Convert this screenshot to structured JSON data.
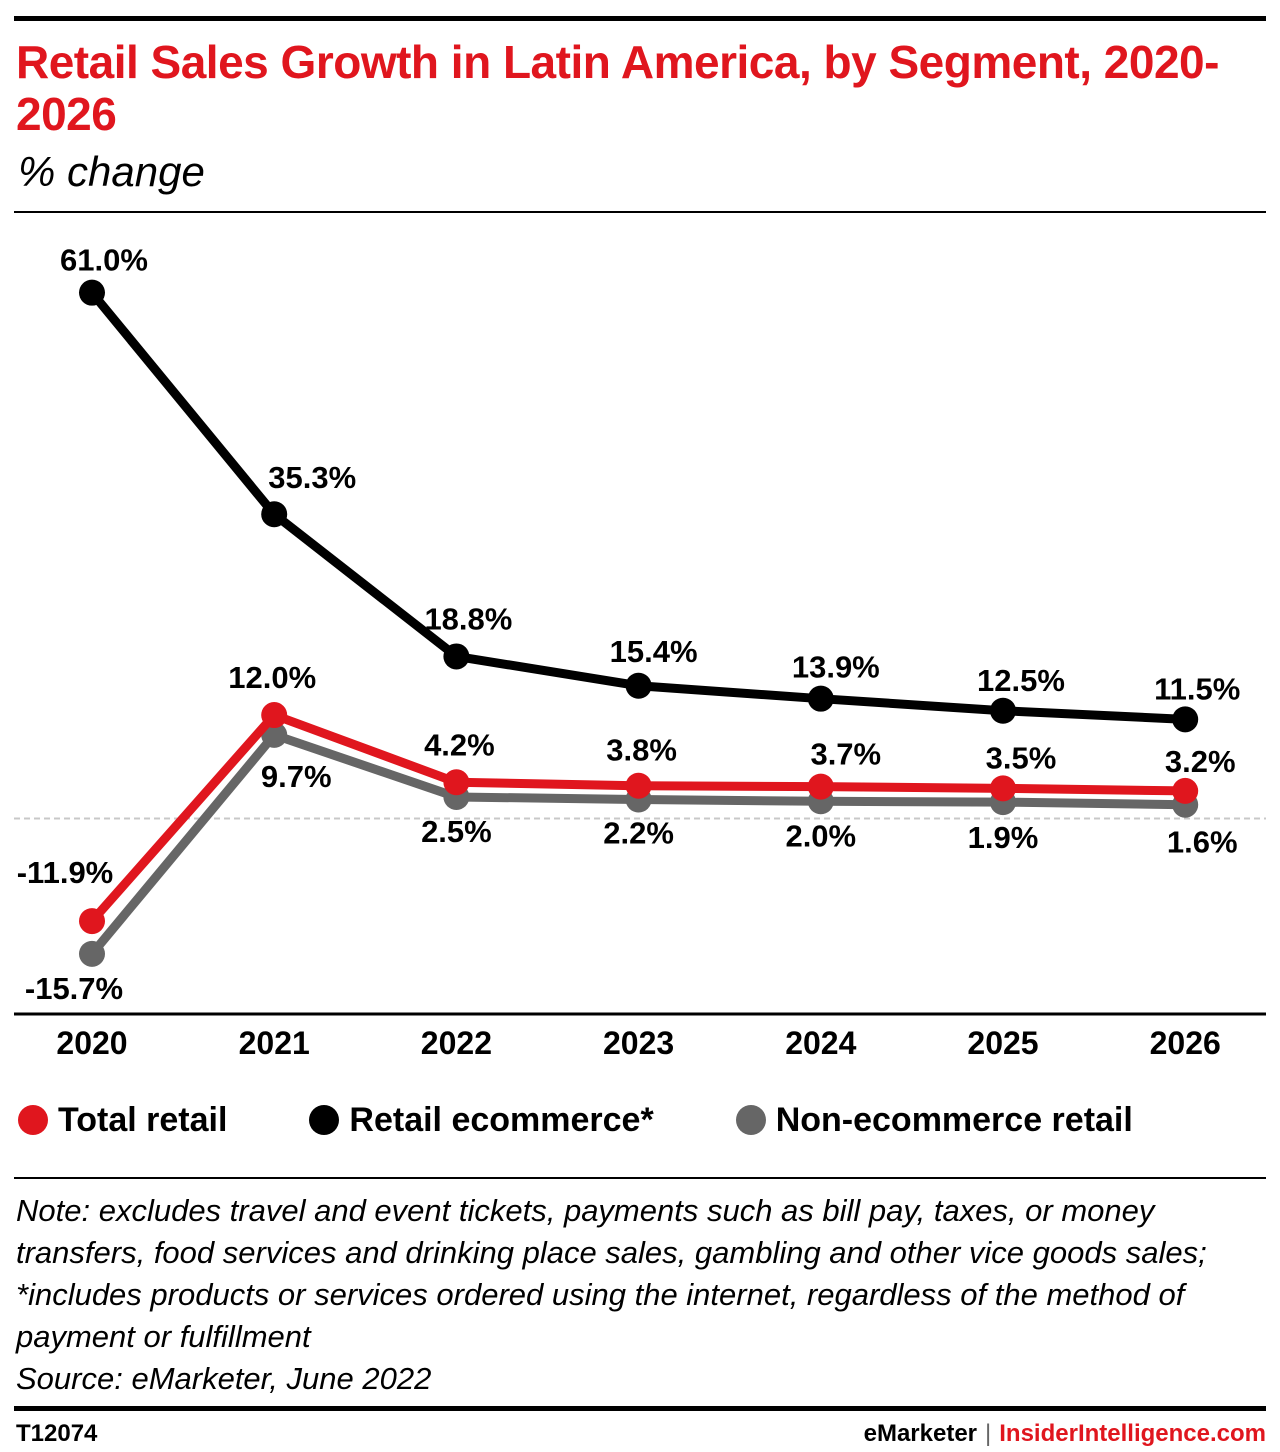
{
  "header": {
    "title": "Retail Sales Growth in Latin America, by Segment, 2020-2026",
    "subtitle": "% change"
  },
  "colors": {
    "brand_red": "#e0161e",
    "total_retail": "#e0161e",
    "retail_ecommerce": "#000000",
    "non_ecommerce_retail": "#666666"
  },
  "chart_data": {
    "type": "line",
    "title": "Retail Sales Growth in Latin America, by Segment, 2020-2026",
    "subtitle": "% change",
    "xlabel": "",
    "ylabel": "",
    "x": [
      "2020",
      "2021",
      "2022",
      "2023",
      "2024",
      "2025",
      "2026"
    ],
    "ylim": [
      -20,
      65
    ],
    "grid": false,
    "zero_line": "dashed",
    "legend_position": "bottom",
    "series": [
      {
        "name": "Total retail",
        "color": "#e0161e",
        "values": [
          -11.9,
          12.0,
          4.2,
          3.8,
          3.7,
          3.5,
          3.2
        ],
        "labels": [
          "-11.9%",
          "12.0%",
          "4.2%",
          "3.8%",
          "3.7%",
          "3.5%",
          "3.2%"
        ]
      },
      {
        "name": "Retail ecommerce*",
        "color": "#000000",
        "values": [
          61.0,
          35.3,
          18.8,
          15.4,
          13.9,
          12.5,
          11.5
        ],
        "labels": [
          "61.0%",
          "35.3%",
          "18.8%",
          "15.4%",
          "13.9%",
          "12.5%",
          "11.5%"
        ]
      },
      {
        "name": "Non-ecommerce retail",
        "color": "#666666",
        "values": [
          -15.7,
          9.7,
          2.5,
          2.2,
          2.0,
          1.9,
          1.6
        ],
        "labels": [
          "-15.7%",
          "9.7%",
          "2.5%",
          "2.2%",
          "2.0%",
          "1.9%",
          "1.6%"
        ]
      }
    ]
  },
  "legend": {
    "items": [
      {
        "label": "Total retail",
        "color": "#e0161e"
      },
      {
        "label": "Retail ecommerce*",
        "color": "#000000"
      },
      {
        "label": "Non-ecommerce retail",
        "color": "#666666"
      }
    ]
  },
  "note": {
    "text": "Note: excludes travel and event tickets, payments such as bill pay, taxes, or money transfers, food services and drinking place sales, gambling and other vice goods sales; *includes products or services ordered using the internet, regardless of the method of payment or fulfillment",
    "source": "Source: eMarketer, June 2022"
  },
  "footer": {
    "chart_id": "T12074",
    "brand": "eMarketer",
    "separator": "|",
    "site": "InsiderIntelligence.com"
  }
}
